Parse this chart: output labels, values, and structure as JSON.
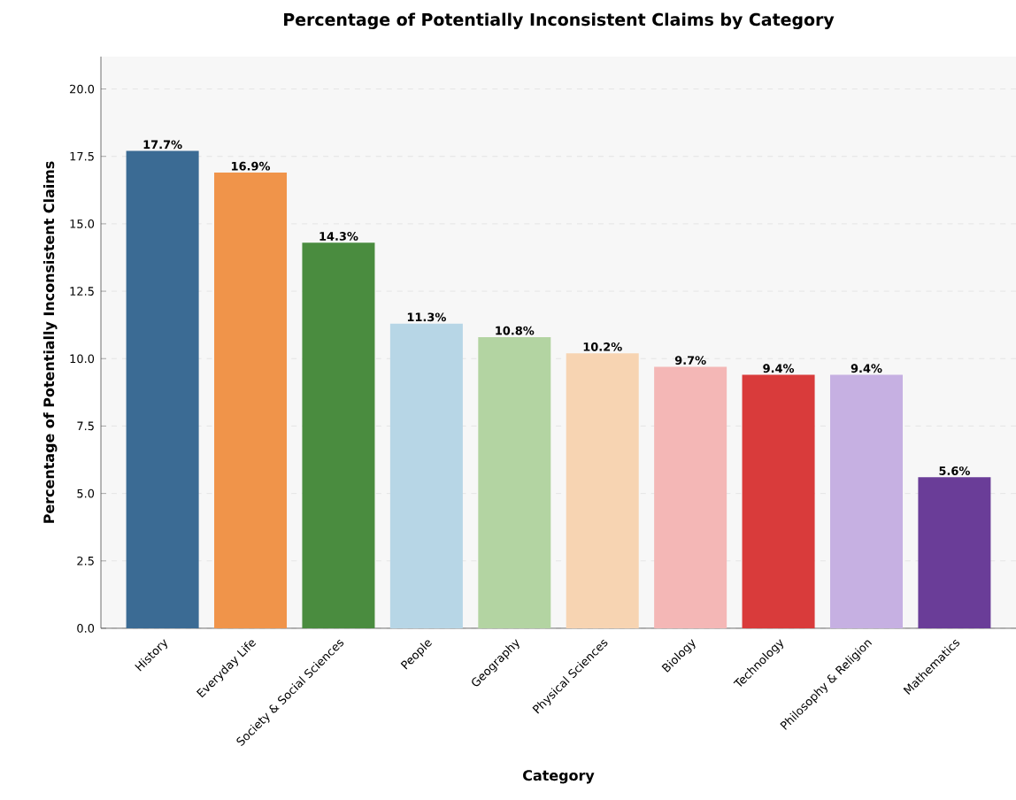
{
  "chart_data": {
    "type": "bar",
    "title": "Percentage of Potentially Inconsistent Claims by Category",
    "xlabel": "Category",
    "ylabel": "Percentage of Potentially Inconsistent Claims",
    "categories": [
      "History",
      "Everyday Life",
      "Society & Social Sciences",
      "People",
      "Geography",
      "Physical Sciences",
      "Biology",
      "Technology",
      "Philosophy & Religion",
      "Mathematics"
    ],
    "values": [
      17.7,
      16.9,
      14.3,
      11.3,
      10.8,
      10.2,
      9.7,
      9.4,
      9.4,
      5.6
    ],
    "colors": [
      "#3b6b94",
      "#f0944a",
      "#4a8c3f",
      "#b7d6e6",
      "#b3d4a2",
      "#f7d4b2",
      "#f4b7b6",
      "#d93b3b",
      "#c6b0e2",
      "#6a3d98"
    ],
    "value_labels": [
      "17.7%",
      "16.9%",
      "14.3%",
      "11.3%",
      "10.8%",
      "10.2%",
      "9.7%",
      "9.4%",
      "9.4%",
      "5.6%"
    ],
    "ylim": [
      0,
      21.2
    ],
    "yticks": [
      {
        "value": 0,
        "label": "0.0"
      },
      {
        "value": 2.5,
        "label": "2.5"
      },
      {
        "value": 5,
        "label": "5.0"
      },
      {
        "value": 7.5,
        "label": "7.5"
      },
      {
        "value": 10,
        "label": "10.0"
      },
      {
        "value": 12.5,
        "label": "12.5"
      },
      {
        "value": 15,
        "label": "15.0"
      },
      {
        "value": 17.5,
        "label": "17.5"
      },
      {
        "value": 20,
        "label": "20.0"
      }
    ],
    "grid": "y"
  }
}
